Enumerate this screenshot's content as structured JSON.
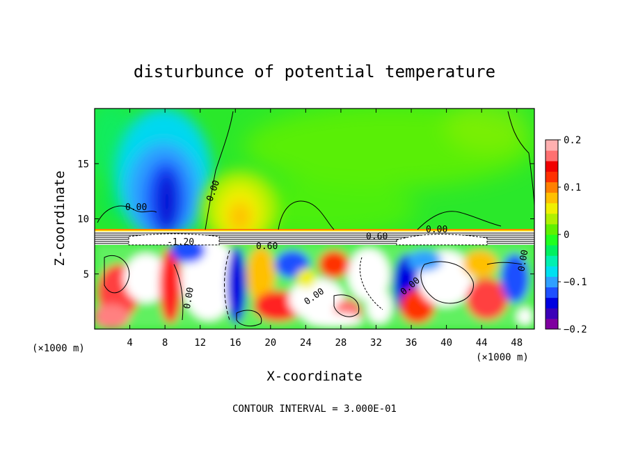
{
  "chart_data": {
    "type": "heatmap",
    "title": "disturbunce of potential temperature",
    "xlabel": "X-coordinate",
    "ylabel": "Z-coordinate",
    "x_unit": "(×1000 m)",
    "x_unit_right": "(×1000 m)",
    "xlim": [
      0,
      50
    ],
    "ylim": [
      0,
      20
    ],
    "x_ticks": [
      4,
      8,
      12,
      16,
      20,
      24,
      28,
      32,
      36,
      40,
      44,
      48
    ],
    "x_tick_labels": [
      "4",
      "8",
      "12",
      "16",
      "20",
      "24",
      "28",
      "32",
      "36",
      "40",
      "44",
      "48"
    ],
    "y_ticks": [
      5,
      10,
      15
    ],
    "y_tick_labels": [
      "5",
      "10",
      "15"
    ],
    "colorbar": {
      "min": -0.2,
      "max": 0.2,
      "ticks": [
        0.2,
        0.1,
        0,
        -0.1,
        -0.2
      ],
      "tick_labels": [
        "0.2",
        "0.1",
        "0",
        "−0.1",
        "−0.2"
      ],
      "colors": [
        "#7f00a0",
        "#3b00b8",
        "#0000e0",
        "#1e50ff",
        "#2fa0ff",
        "#00e0f0",
        "#00f0b0",
        "#00f060",
        "#20ff20",
        "#60f000",
        "#b0f000",
        "#f0f000",
        "#ffc000",
        "#ff8000",
        "#ff3000",
        "#f00000",
        "#ff7070",
        "#ffb0b0"
      ]
    },
    "contour_labels": [
      "0.00",
      "0.00",
      "-1.20",
      "0.60",
      "0.60",
      "0.00",
      "0.00",
      "0.00",
      "0.00",
      "0.00"
    ],
    "footer": "CONTOUR INTERVAL = 3.000E-01",
    "grid": false,
    "colors": {
      "background": "#00ee44",
      "upper_field": "#5aff00",
      "cold_plume": "#1060ff",
      "warm_plume": "#ffe000",
      "neutral_white": "#ffffff"
    }
  }
}
